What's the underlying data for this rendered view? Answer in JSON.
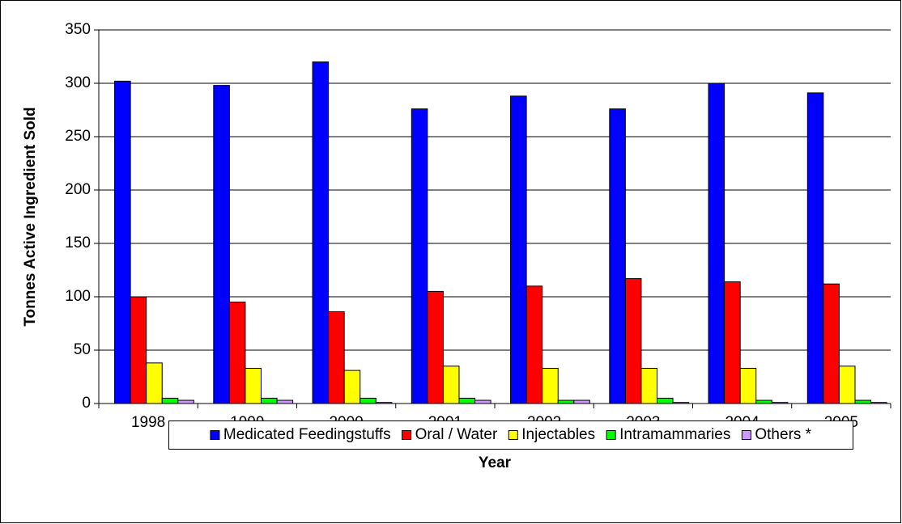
{
  "chart_data": {
    "type": "bar",
    "y_label": "Tonnes Active Ingredient Sold",
    "x_label": "Year",
    "categories": [
      "1998",
      "1999",
      "2000",
      "2001",
      "2002",
      "2003",
      "2004",
      "2005"
    ],
    "series": [
      {
        "name": "Medicated Feedingstuffs",
        "color": "#0000ff",
        "values": [
          302,
          298,
          320,
          276,
          288,
          276,
          300,
          291
        ]
      },
      {
        "name": "Oral / Water",
        "color": "#ff0000",
        "values": [
          100,
          95,
          86,
          105,
          110,
          117,
          114,
          112
        ]
      },
      {
        "name": "Injectables",
        "color": "#ffff00",
        "values": [
          38,
          33,
          31,
          35,
          33,
          33,
          33,
          35
        ]
      },
      {
        "name": "Intramammaries",
        "color": "#00ff00",
        "values": [
          5,
          5,
          5,
          5,
          3,
          5,
          3,
          3
        ]
      },
      {
        "name": "Others *",
        "color": "#cc99ff",
        "values": [
          3,
          3,
          1,
          3,
          3,
          1,
          1,
          1
        ]
      }
    ],
    "ylim": [
      0,
      350
    ],
    "yticks": [
      0,
      50,
      100,
      150,
      200,
      250,
      300,
      350
    ],
    "grid": true,
    "legend": "bottom"
  }
}
